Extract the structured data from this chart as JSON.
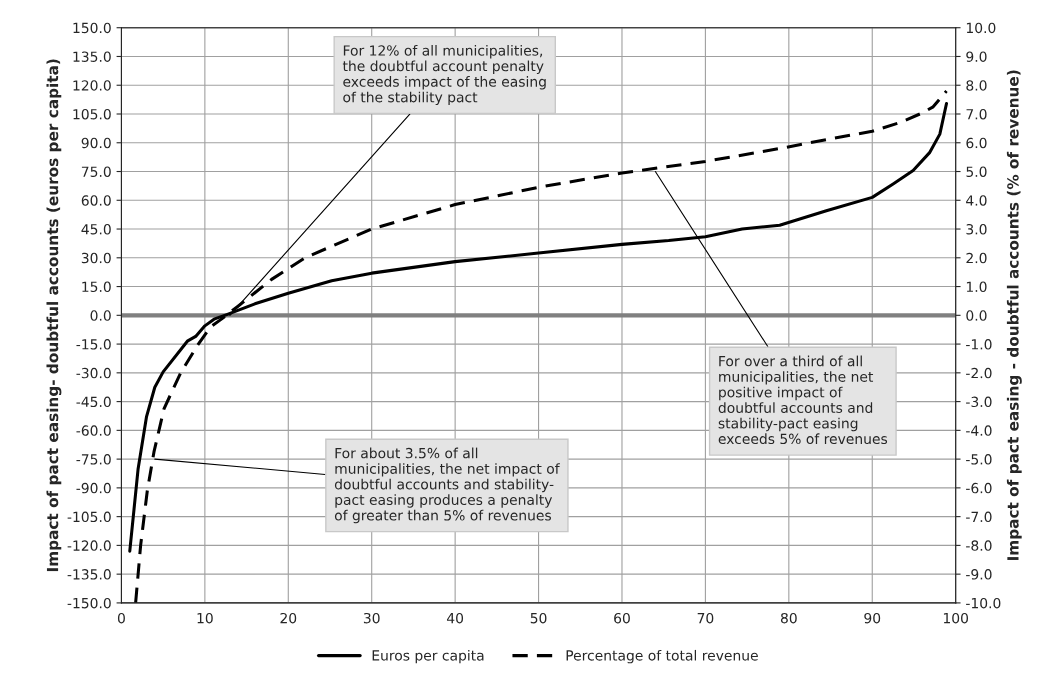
{
  "chart_data": {
    "type": "line",
    "xlabel": null,
    "ylabel": "Impact of pact easing- doubtful accounts (euros per capita)",
    "y2label": "Impact of pact easing - doubtful accounts (% of revenue)",
    "series": [
      {
        "name": "Euros per capita",
        "color": "#000000",
        "line_style": "solid",
        "x": [
          1,
          2,
          3,
          4,
          5,
          7.9,
          8.9,
          10,
          11.1,
          12.7,
          16,
          20,
          25.2,
          30,
          40,
          50,
          60,
          65.6,
          70,
          74.4,
          78.9,
          84.5,
          90,
          92.5,
          94.9,
          96.9,
          98.1,
          98.9
        ],
        "values": [
          -123,
          -80,
          -53,
          -37.5,
          -29.5,
          -13.5,
          -11,
          -5.5,
          -2,
          0.5,
          6,
          11.5,
          18,
          22,
          28,
          32.5,
          37,
          39,
          41,
          45,
          47,
          54.5,
          61.5,
          68.5,
          75.5,
          85,
          94.5,
          110.5
        ]
      },
      {
        "name": "Percentage of total revenue",
        "color": "#000000",
        "line_style": "dashed",
        "axis": "y2",
        "x": [
          1.7,
          2.3,
          3.1,
          3.9,
          5.1,
          7.1,
          9.1,
          10.7,
          11.9,
          13.9,
          18,
          22,
          27.2,
          30,
          40,
          50,
          60,
          70,
          78.9,
          85.3,
          90,
          93.3,
          96.1,
          97.3,
          98.9
        ],
        "values": [
          -10,
          -8,
          -6.1,
          -4.75,
          -3.25,
          -2,
          -1.05,
          -0.4,
          -0.15,
          0.3,
          1.25,
          2,
          2.65,
          3,
          3.85,
          4.45,
          4.95,
          5.35,
          5.8,
          6.15,
          6.4,
          6.7,
          7.05,
          7.25,
          7.8
        ]
      }
    ],
    "xlim": [
      0,
      100
    ],
    "xticks": [
      0,
      10,
      20,
      30,
      40,
      50,
      60,
      70,
      80,
      90,
      100
    ],
    "ylim": [
      -150,
      150
    ],
    "yticks": [
      {
        "value": -150,
        "label": "-150.0"
      },
      {
        "value": -135,
        "label": "-135.0"
      },
      {
        "value": -120,
        "label": "-120.0"
      },
      {
        "value": -105,
        "label": "-105.0"
      },
      {
        "value": -90,
        "label": "-90.0"
      },
      {
        "value": -75,
        "label": "-75.0"
      },
      {
        "value": -60,
        "label": "-60.0"
      },
      {
        "value": -45,
        "label": "-45.0"
      },
      {
        "value": -30,
        "label": "-30.0"
      },
      {
        "value": -15,
        "label": "-15.0"
      },
      {
        "value": 0,
        "label": "0.0"
      },
      {
        "value": 15,
        "label": "15.0"
      },
      {
        "value": 30,
        "label": "30.0"
      },
      {
        "value": 45,
        "label": "45.0"
      },
      {
        "value": 60,
        "label": "60.0"
      },
      {
        "value": 75,
        "label": "75.0"
      },
      {
        "value": 90,
        "label": "90.0"
      },
      {
        "value": 105,
        "label": "105.0"
      },
      {
        "value": 120,
        "label": "120.0"
      },
      {
        "value": 135,
        "label": "135.0"
      },
      {
        "value": 150,
        "label": "150.0"
      }
    ],
    "y2lim": [
      -10,
      10
    ],
    "y2ticks": [
      {
        "value": -10,
        "label": "-10.0"
      },
      {
        "value": -9,
        "label": "-9.0"
      },
      {
        "value": -8,
        "label": "-8.0"
      },
      {
        "value": -7,
        "label": "-7.0"
      },
      {
        "value": -6,
        "label": "-6.0"
      },
      {
        "value": -5,
        "label": "-5.0"
      },
      {
        "value": -4,
        "label": "-4.0"
      },
      {
        "value": -3,
        "label": "-3.0"
      },
      {
        "value": -2,
        "label": "-2.0"
      },
      {
        "value": -1,
        "label": "-1.0"
      },
      {
        "value": 0,
        "label": "0.0"
      },
      {
        "value": 1,
        "label": "1.0"
      },
      {
        "value": 2,
        "label": "2.0"
      },
      {
        "value": 3,
        "label": "3.0"
      },
      {
        "value": 4,
        "label": "4.0"
      },
      {
        "value": 5,
        "label": "5.0"
      },
      {
        "value": 6,
        "label": "6.0"
      },
      {
        "value": 7,
        "label": "7.0"
      },
      {
        "value": 8,
        "label": "8.0"
      },
      {
        "value": 9,
        "label": "9.0"
      },
      {
        "value": 10,
        "label": "10.0"
      }
    ],
    "ref_lines": [
      {
        "axis": "y",
        "value": 0,
        "color": "#808080"
      }
    ],
    "grid": true,
    "legend": "bottom",
    "marker": "none",
    "annotations": [
      {
        "text": "For 12% of all municipalities,\nthe doubtful account penalty\nexceeds impact of the easing\nof the stability pact",
        "x": 13,
        "y": 0
      },
      {
        "text": "For over a third of all\nmunicipalities, the net\npositive impact of\ndoubtful accounts and\nstability-pact easing\nexceeds 5% of revenues",
        "x": 64,
        "y": 75
      },
      {
        "text": "For about 3.5% of all\nmunicipalities, the net impact of\ndoubtful accounts and stability-\npact easing produces a penalty\nof greater than 5% of revenues",
        "x": 4,
        "y": -75
      }
    ]
  }
}
